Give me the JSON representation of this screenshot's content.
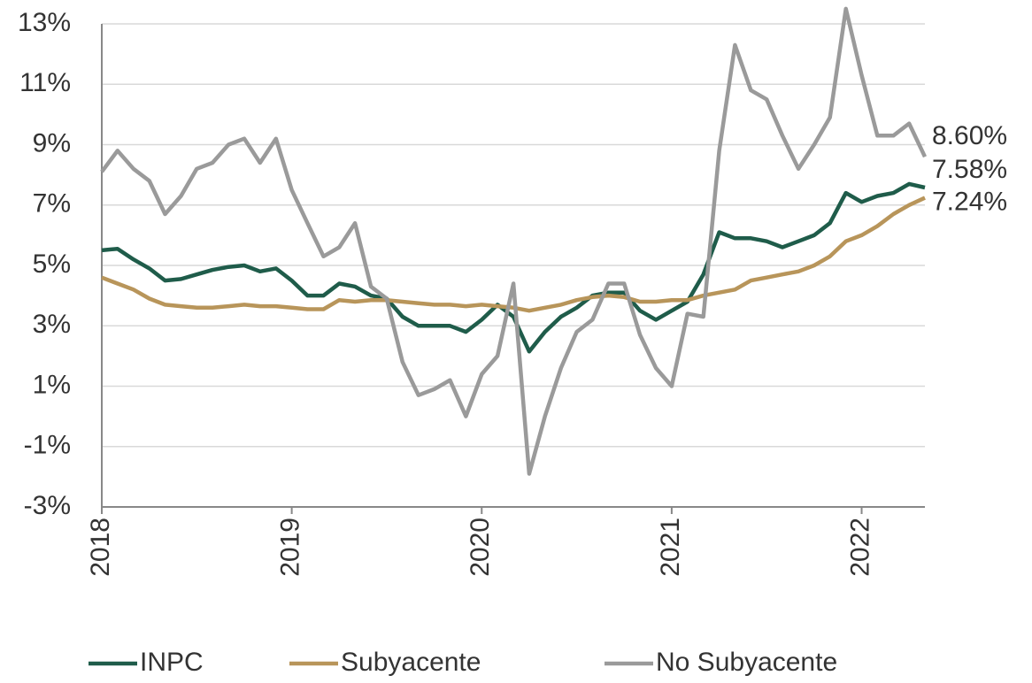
{
  "chart_data": {
    "type": "line",
    "x": [
      2018,
      2018.083,
      2018.167,
      2018.25,
      2018.333,
      2018.417,
      2018.5,
      2018.583,
      2018.667,
      2018.75,
      2018.833,
      2018.917,
      2019,
      2019.083,
      2019.167,
      2019.25,
      2019.333,
      2019.417,
      2019.5,
      2019.583,
      2019.667,
      2019.75,
      2019.833,
      2019.917,
      2020,
      2020.083,
      2020.167,
      2020.25,
      2020.333,
      2020.417,
      2020.5,
      2020.583,
      2020.667,
      2020.75,
      2020.833,
      2020.917,
      2021,
      2021.083,
      2021.167,
      2021.25,
      2021.333,
      2021.417,
      2021.5,
      2021.583,
      2021.667,
      2021.75,
      2021.833,
      2021.917,
      2022,
      2022.083,
      2022.167,
      2022.25,
      2022.333
    ],
    "series": [
      {
        "name": "INPC",
        "color": "#1f5c4a",
        "values": [
          5.5,
          5.55,
          5.2,
          4.9,
          4.5,
          4.55,
          4.7,
          4.85,
          4.95,
          5.0,
          4.8,
          4.9,
          4.5,
          4.0,
          4.0,
          4.4,
          4.3,
          4.0,
          3.9,
          3.3,
          3.0,
          3.0,
          3.0,
          2.8,
          3.2,
          3.7,
          3.3,
          2.15,
          2.8,
          3.3,
          3.6,
          4.0,
          4.1,
          4.1,
          3.5,
          3.2,
          3.5,
          3.8,
          4.7,
          6.1,
          5.9,
          5.9,
          5.8,
          5.6,
          5.8,
          6.0,
          6.4,
          7.4,
          7.1,
          7.3,
          7.4,
          7.7,
          7.58
        ],
        "value_labels": [
          null,
          null,
          null,
          null,
          null,
          null,
          null,
          null,
          null,
          null,
          null,
          null,
          null,
          null,
          null,
          null,
          null,
          null,
          null,
          null,
          null,
          null,
          null,
          null,
          null,
          null,
          null,
          null,
          null,
          null,
          null,
          null,
          null,
          null,
          null,
          null,
          null,
          null,
          null,
          null,
          null,
          null,
          null,
          null,
          null,
          null,
          null,
          null,
          null,
          null,
          null,
          null,
          "7.58%"
        ]
      },
      {
        "name": "Subyacente",
        "color": "#b8955a",
        "values": [
          4.6,
          4.4,
          4.2,
          3.9,
          3.7,
          3.65,
          3.6,
          3.6,
          3.65,
          3.7,
          3.65,
          3.65,
          3.6,
          3.55,
          3.55,
          3.85,
          3.8,
          3.85,
          3.85,
          3.8,
          3.75,
          3.7,
          3.7,
          3.65,
          3.7,
          3.65,
          3.6,
          3.5,
          3.6,
          3.7,
          3.85,
          3.95,
          4.0,
          3.95,
          3.8,
          3.8,
          3.85,
          3.85,
          4.0,
          4.1,
          4.2,
          4.5,
          4.6,
          4.7,
          4.8,
          5.0,
          5.3,
          5.8,
          6.0,
          6.3,
          6.7,
          7.0,
          7.24
        ],
        "value_labels": [
          null,
          null,
          null,
          null,
          null,
          null,
          null,
          null,
          null,
          null,
          null,
          null,
          null,
          null,
          null,
          null,
          null,
          null,
          null,
          null,
          null,
          null,
          null,
          null,
          null,
          null,
          null,
          null,
          null,
          null,
          null,
          null,
          null,
          null,
          null,
          null,
          null,
          null,
          null,
          null,
          null,
          null,
          null,
          null,
          null,
          null,
          null,
          null,
          null,
          null,
          null,
          null,
          "7.24%"
        ]
      },
      {
        "name": "No Subyacente",
        "color": "#9a9a9a",
        "values": [
          8.1,
          8.8,
          8.2,
          7.8,
          6.7,
          7.3,
          8.2,
          8.4,
          9.0,
          9.2,
          8.4,
          9.2,
          7.5,
          6.4,
          5.3,
          5.6,
          6.4,
          4.3,
          3.9,
          1.8,
          0.7,
          0.9,
          1.2,
          0.0,
          1.4,
          2.0,
          4.4,
          -1.9,
          0.0,
          1.6,
          2.8,
          3.2,
          4.4,
          4.4,
          2.7,
          1.6,
          1.0,
          3.4,
          3.3,
          8.8,
          12.3,
          10.8,
          10.5,
          9.3,
          8.2,
          9.0,
          9.9,
          13.5,
          11.3,
          9.3,
          9.3,
          9.7,
          8.6
        ],
        "value_labels": [
          null,
          null,
          null,
          null,
          null,
          null,
          null,
          null,
          null,
          null,
          null,
          null,
          null,
          null,
          null,
          null,
          null,
          null,
          null,
          null,
          null,
          null,
          null,
          null,
          null,
          null,
          null,
          null,
          null,
          null,
          null,
          null,
          null,
          null,
          null,
          null,
          null,
          null,
          null,
          null,
          null,
          null,
          null,
          null,
          null,
          null,
          null,
          null,
          null,
          null,
          null,
          null,
          "8.60%"
        ]
      }
    ],
    "xlim": [
      2018,
      2022.333
    ],
    "xticks": [
      2018,
      2019,
      2020,
      2021,
      2022
    ],
    "ylim": [
      -3,
      13
    ],
    "yticks": [
      {
        "value": -3,
        "label": "-3%"
      },
      {
        "value": -1,
        "label": "-1%"
      },
      {
        "value": 1,
        "label": "1%"
      },
      {
        "value": 3,
        "label": "3%"
      },
      {
        "value": 5,
        "label": "5%"
      },
      {
        "value": 7,
        "label": "7%"
      },
      {
        "value": 9,
        "label": "9%"
      },
      {
        "value": 11,
        "label": "11%"
      },
      {
        "value": 13,
        "label": "13%"
      }
    ],
    "grid": true,
    "legend": "bottom"
  }
}
